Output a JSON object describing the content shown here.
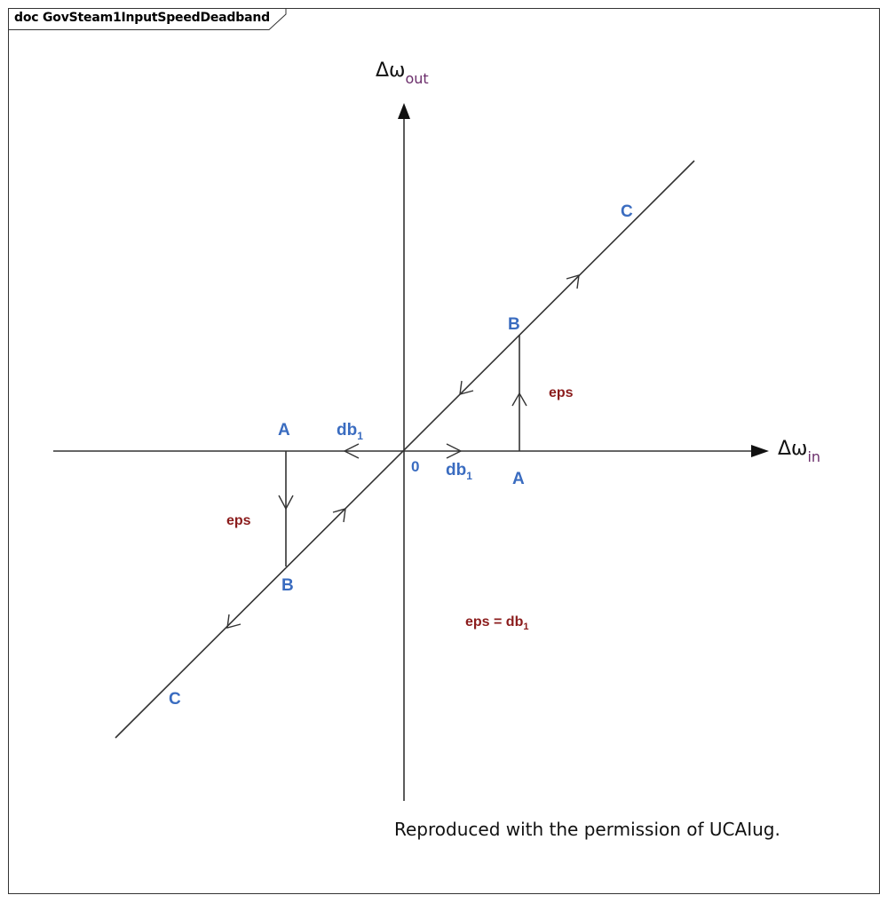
{
  "frame": {
    "tab_title": "doc GovSteam1InputSpeedDeadband"
  },
  "diagram": {
    "y_axis_label": "Δω",
    "y_axis_sub": "out",
    "x_axis_label": "Δω",
    "x_axis_sub": "in",
    "origin_label": "0",
    "points": {
      "A_left": "A",
      "A_right": "A",
      "B_left": "B",
      "B_right": "B",
      "C_top": "C",
      "C_bottom": "C"
    },
    "db_label_main": "db",
    "db_label_sub": "1",
    "eps_label": "eps",
    "eq_label_main": "eps = db",
    "eq_label_sub": "1"
  },
  "footer": {
    "permission_note": "Reproduced with the permission of UCAIug."
  }
}
